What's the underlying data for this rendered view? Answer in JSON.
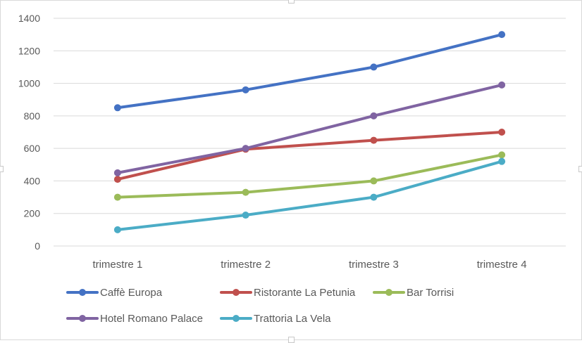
{
  "chart_data": {
    "type": "line",
    "title": "",
    "xlabel": "",
    "ylabel": "",
    "categories": [
      "trimestre 1",
      "trimestre 2",
      "trimestre 3",
      "trimestre 4"
    ],
    "ylim": [
      0,
      1400
    ],
    "yticks": [
      0,
      200,
      400,
      600,
      800,
      1000,
      1200,
      1400
    ],
    "grid": true,
    "legend_position": "bottom",
    "series": [
      {
        "name": "Caffè Europa",
        "color": "#4472C4",
        "values": [
          850,
          960,
          1100,
          1300
        ]
      },
      {
        "name": "Ristorante La Petunia",
        "color": "#C0504D",
        "values": [
          410,
          595,
          650,
          700
        ]
      },
      {
        "name": "Bar Torrisi",
        "color": "#9BBB59",
        "values": [
          300,
          330,
          400,
          560
        ]
      },
      {
        "name": "Hotel Romano Palace",
        "color": "#8064A2",
        "values": [
          450,
          600,
          800,
          990
        ]
      },
      {
        "name": "Trattoria La Vela",
        "color": "#4BACC6",
        "values": [
          100,
          190,
          300,
          520
        ]
      }
    ]
  }
}
